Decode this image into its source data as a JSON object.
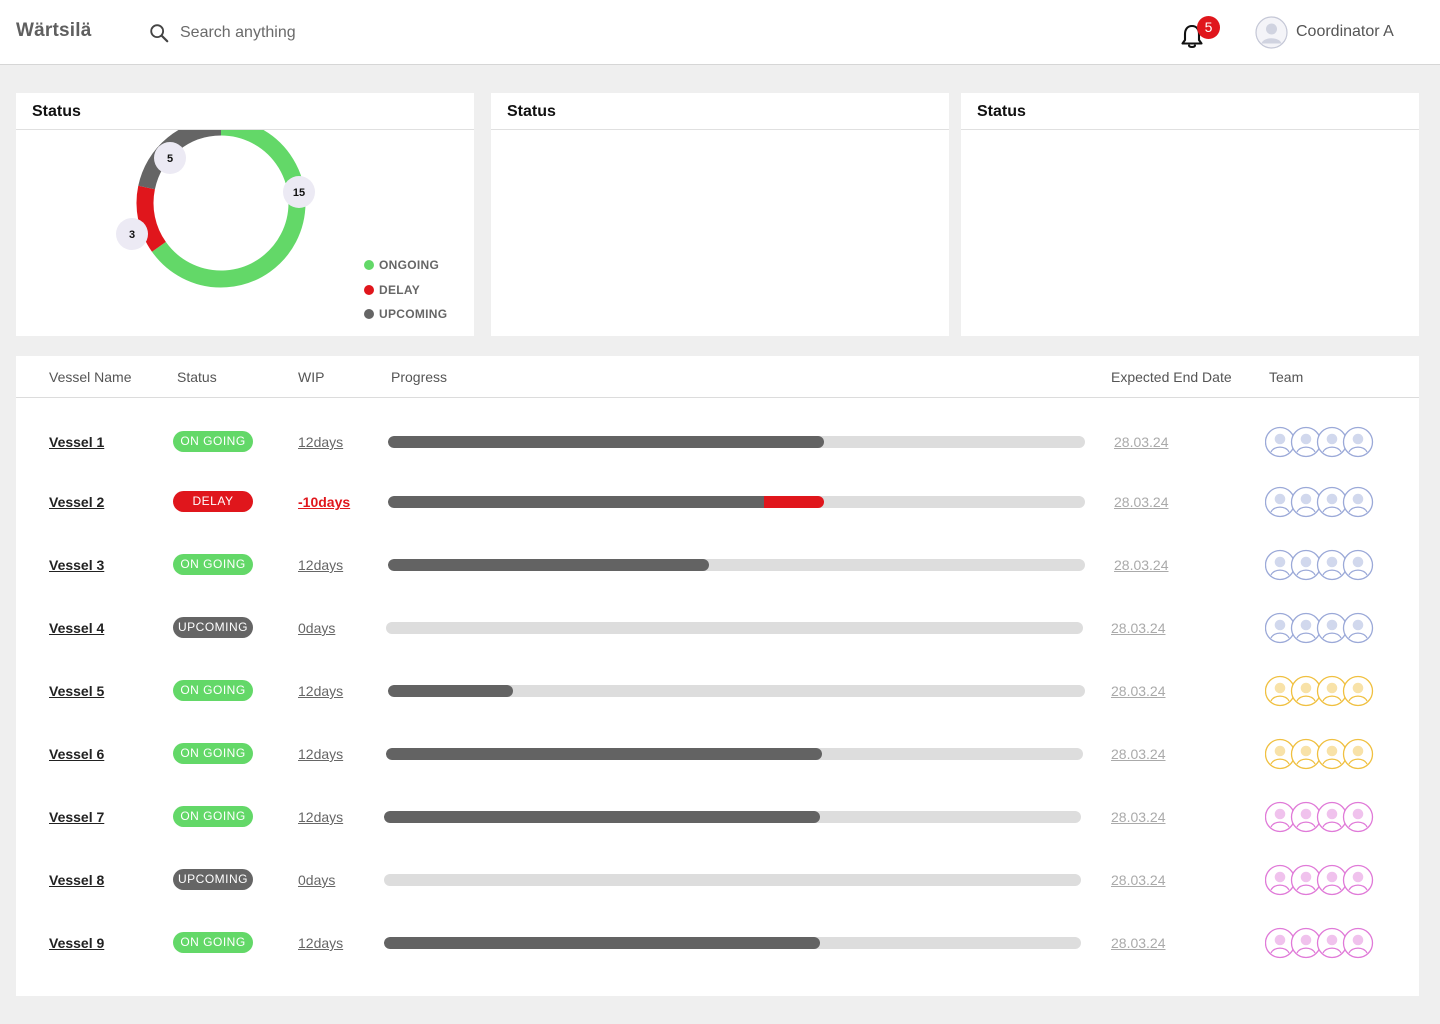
{
  "header": {
    "logo": "Wärtsilä",
    "search_placeholder": "Search anything",
    "notification_count": "5",
    "user_name": "Coordinator A"
  },
  "panels": [
    {
      "title": "Status",
      "chart_data": {
        "type": "pie",
        "categories": [
          "ONGOING",
          "DELAY",
          "UPCOMING"
        ],
        "values": [
          15,
          3,
          5
        ],
        "colors": [
          "#63d868",
          "#e0161c",
          "#656565"
        ],
        "legend_position": "right"
      }
    },
    {
      "title": "Status"
    },
    {
      "title": "Status"
    }
  ],
  "table": {
    "columns": [
      "Vessel Name",
      "Status",
      "WIP",
      "Progress",
      "Expected End Date",
      "Team"
    ],
    "rows": [
      {
        "vessel": "Vessel 1",
        "status": "ON GOING",
        "status_type": "ongoing",
        "wip": "12days",
        "progress": 0.625,
        "delay": 0,
        "date": "28.03.24",
        "team_color": "#9ba9d8"
      },
      {
        "vessel": "Vessel 2",
        "status": "DELAY",
        "status_type": "delay",
        "wip": "-10days",
        "progress": 0.54,
        "delay": 0.085,
        "date": "28.03.24",
        "team_color": "#9ba9d8"
      },
      {
        "vessel": "Vessel 3",
        "status": "ON GOING",
        "status_type": "ongoing",
        "wip": "12days",
        "progress": 0.46,
        "delay": 0,
        "date": "28.03.24",
        "team_color": "#9ba9d8"
      },
      {
        "vessel": "Vessel 4",
        "status": "UPCOMING",
        "status_type": "upcoming",
        "wip": "0days",
        "progress": 0,
        "delay": 0,
        "date": "28.03.24",
        "team_color": "#9ba9d8"
      },
      {
        "vessel": "Vessel 5",
        "status": "ON GOING",
        "status_type": "ongoing",
        "wip": "12days",
        "progress": 0.18,
        "delay": 0,
        "date": "28.03.24",
        "team_color": "#f0c040"
      },
      {
        "vessel": "Vessel 6",
        "status": "ON GOING",
        "status_type": "ongoing",
        "wip": "12days",
        "progress": 0.625,
        "delay": 0,
        "date": "28.03.24",
        "team_color": "#f0c040"
      },
      {
        "vessel": "Vessel 7",
        "status": "ON GOING",
        "status_type": "ongoing",
        "wip": "12days",
        "progress": 0.625,
        "delay": 0,
        "date": "28.03.24",
        "team_color": "#e07ad8"
      },
      {
        "vessel": "Vessel 8",
        "status": "UPCOMING",
        "status_type": "upcoming",
        "wip": "0days",
        "progress": 0,
        "delay": 0,
        "date": "28.03.24",
        "team_color": "#e07ad8"
      },
      {
        "vessel": "Vessel 9",
        "status": "ON GOING",
        "status_type": "ongoing",
        "wip": "12days",
        "progress": 0.625,
        "delay": 0,
        "date": "28.03.24",
        "team_color": "#e07ad8"
      }
    ]
  },
  "colors": {
    "ongoing": "#63d868",
    "delay": "#e0161c",
    "upcoming": "#656565"
  }
}
